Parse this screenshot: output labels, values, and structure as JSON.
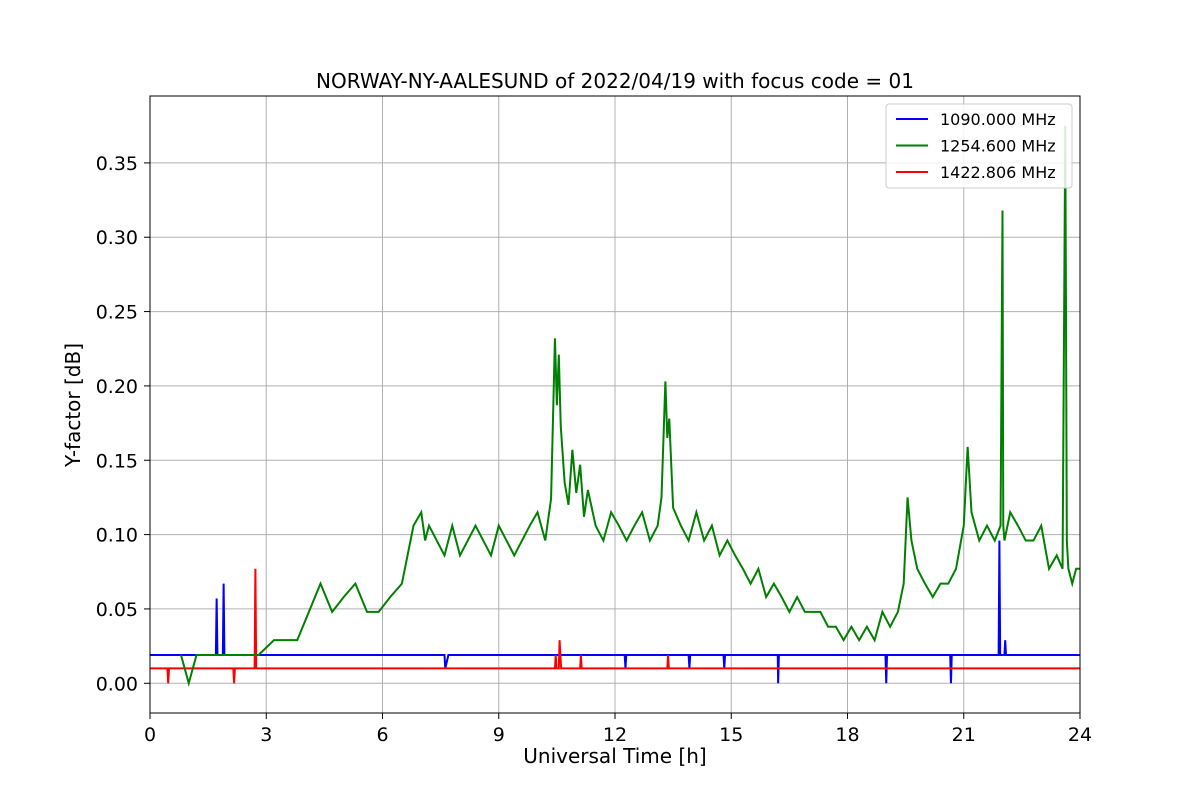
{
  "chart_data": {
    "type": "line",
    "title": "NORWAY-NY-AALESUND of 2022/04/19 with focus code = 01",
    "xlabel": "Universal Time [h]",
    "ylabel": "Y-factor [dB]",
    "xlim": [
      0,
      24
    ],
    "ylim": [
      -0.02,
      0.395
    ],
    "xticks": [
      0,
      3,
      6,
      9,
      12,
      15,
      18,
      21,
      24
    ],
    "xtick_labels": [
      "0",
      "3",
      "6",
      "9",
      "12",
      "15",
      "18",
      "21",
      "24"
    ],
    "yticks": [
      0.0,
      0.05,
      0.1,
      0.15,
      0.2,
      0.25,
      0.3,
      0.35
    ],
    "ytick_labels": [
      "0.00",
      "0.05",
      "0.10",
      "0.15",
      "0.20",
      "0.25",
      "0.30",
      "0.35"
    ],
    "grid": true,
    "legend_position": "top-right",
    "series": [
      {
        "name": "1090.000 MHz",
        "color": "#0000ff",
        "x": [
          0,
          1.7,
          1.72,
          1.74,
          1.76,
          1.88,
          1.9,
          1.92,
          1.94,
          4.5,
          6.0,
          7.0,
          7.5,
          7.6,
          7.62,
          7.7,
          9.0,
          10.0,
          11.0,
          11.5,
          12.25,
          12.27,
          12.29,
          12.31,
          13.9,
          13.92,
          13.94,
          14.8,
          14.82,
          14.84,
          15.0,
          16.2,
          16.21,
          16.23,
          16.25,
          18.98,
          19.0,
          19.02,
          19.04,
          20.65,
          20.67,
          20.69,
          20.71,
          21.9,
          21.92,
          21.94,
          21.96,
          22.05,
          22.07,
          22.09,
          24
        ],
        "y": [
          0.019,
          0.019,
          0.057,
          0.019,
          0.019,
          0.019,
          0.067,
          0.019,
          0.019,
          0.019,
          0.019,
          0.019,
          0.019,
          0.019,
          0.01,
          0.019,
          0.019,
          0.019,
          0.019,
          0.019,
          0.019,
          0.01,
          0.019,
          0.019,
          0.019,
          0.01,
          0.019,
          0.019,
          0.01,
          0.019,
          0.019,
          0.019,
          0.0,
          0.019,
          0.019,
          0.019,
          0.0,
          0.019,
          0.019,
          0.019,
          0.0,
          0.019,
          0.019,
          0.019,
          0.096,
          0.019,
          0.019,
          0.019,
          0.029,
          0.019,
          0.019
        ]
      },
      {
        "name": "1254.600 MHz",
        "color": "#008000",
        "x": [
          0.8,
          1.0,
          1.2,
          1.6,
          2.0,
          2.4,
          2.8,
          3.2,
          3.5,
          3.8,
          4.1,
          4.4,
          4.7,
          5.0,
          5.3,
          5.6,
          5.9,
          6.2,
          6.5,
          6.8,
          7.0,
          7.1,
          7.2,
          7.4,
          7.6,
          7.8,
          8.0,
          8.2,
          8.4,
          8.6,
          8.8,
          9.0,
          9.2,
          9.4,
          9.6,
          9.8,
          10.0,
          10.2,
          10.35,
          10.45,
          10.5,
          10.55,
          10.6,
          10.7,
          10.8,
          10.9,
          11.0,
          11.1,
          11.2,
          11.3,
          11.5,
          11.7,
          11.9,
          12.1,
          12.3,
          12.5,
          12.7,
          12.9,
          13.1,
          13.2,
          13.3,
          13.35,
          13.4,
          13.5,
          13.7,
          13.9,
          14.1,
          14.3,
          14.5,
          14.7,
          14.9,
          15.1,
          15.3,
          15.5,
          15.7,
          15.9,
          16.1,
          16.3,
          16.5,
          16.7,
          16.9,
          17.1,
          17.3,
          17.5,
          17.7,
          17.9,
          18.1,
          18.3,
          18.5,
          18.7,
          18.9,
          19.1,
          19.3,
          19.45,
          19.55,
          19.65,
          19.8,
          20.0,
          20.2,
          20.4,
          20.6,
          20.8,
          21.0,
          21.1,
          21.2,
          21.4,
          21.6,
          21.8,
          21.95,
          22.0,
          22.02,
          22.05,
          22.2,
          22.4,
          22.6,
          22.8,
          23.0,
          23.2,
          23.4,
          23.55,
          23.62,
          23.66,
          23.7,
          23.8,
          23.9,
          24.0
        ],
        "y": [
          0.019,
          0.0,
          0.019,
          0.019,
          0.019,
          0.019,
          0.019,
          0.029,
          0.029,
          0.029,
          0.048,
          0.067,
          0.048,
          0.058,
          0.067,
          0.048,
          0.048,
          0.058,
          0.067,
          0.106,
          0.115,
          0.096,
          0.106,
          0.096,
          0.086,
          0.106,
          0.086,
          0.096,
          0.106,
          0.096,
          0.086,
          0.106,
          0.096,
          0.086,
          0.096,
          0.106,
          0.115,
          0.096,
          0.124,
          0.232,
          0.187,
          0.221,
          0.173,
          0.135,
          0.12,
          0.157,
          0.128,
          0.147,
          0.112,
          0.13,
          0.106,
          0.096,
          0.115,
          0.106,
          0.096,
          0.106,
          0.115,
          0.096,
          0.106,
          0.125,
          0.203,
          0.165,
          0.178,
          0.118,
          0.106,
          0.096,
          0.115,
          0.096,
          0.106,
          0.086,
          0.096,
          0.086,
          0.077,
          0.067,
          0.077,
          0.058,
          0.067,
          0.058,
          0.048,
          0.058,
          0.048,
          0.048,
          0.048,
          0.038,
          0.038,
          0.029,
          0.038,
          0.029,
          0.038,
          0.029,
          0.048,
          0.038,
          0.048,
          0.067,
          0.125,
          0.096,
          0.077,
          0.067,
          0.058,
          0.067,
          0.067,
          0.077,
          0.106,
          0.159,
          0.115,
          0.096,
          0.106,
          0.096,
          0.106,
          0.318,
          0.106,
          0.096,
          0.115,
          0.106,
          0.096,
          0.096,
          0.106,
          0.077,
          0.086,
          0.077,
          0.375,
          0.096,
          0.077,
          0.067,
          0.077,
          0.077
        ]
      },
      {
        "name": "1422.806 MHz",
        "color": "#ff0000",
        "x": [
          0,
          0.45,
          0.47,
          0.49,
          0.51,
          2.15,
          2.17,
          2.19,
          2.21,
          2.7,
          2.72,
          2.74,
          2.76,
          10.45,
          10.47,
          10.49,
          10.55,
          10.57,
          10.59,
          10.61,
          11.1,
          11.12,
          11.14,
          13.35,
          13.37,
          13.39,
          24
        ],
        "y": [
          0.01,
          0.01,
          0.0,
          0.01,
          0.01,
          0.01,
          0.0,
          0.01,
          0.01,
          0.01,
          0.077,
          0.01,
          0.01,
          0.01,
          0.019,
          0.01,
          0.01,
          0.029,
          0.019,
          0.01,
          0.01,
          0.019,
          0.01,
          0.01,
          0.019,
          0.01,
          0.01
        ]
      }
    ]
  }
}
